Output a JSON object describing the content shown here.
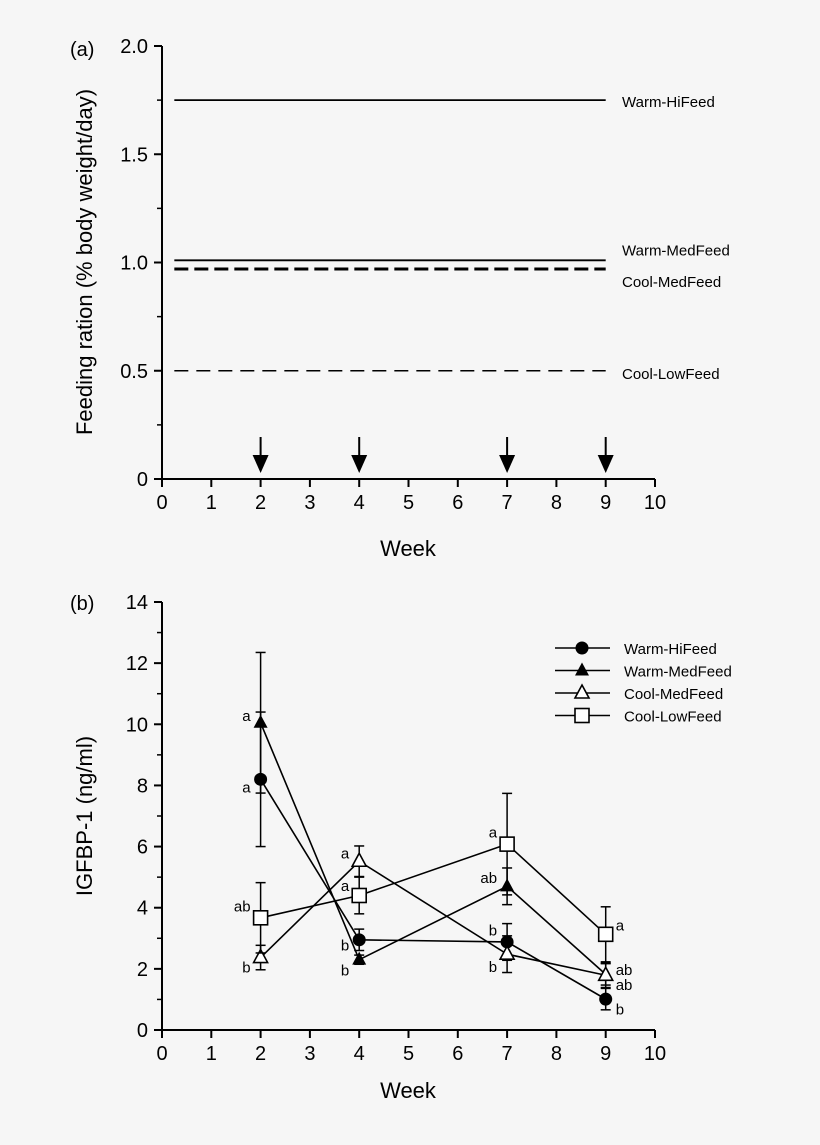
{
  "chart_data": [
    {
      "panel_label": "(a)",
      "type": "line",
      "xlabel": "Week",
      "ylabel": "Feeding ration (% body weight/day)",
      "xlim": [
        0,
        10
      ],
      "ylim": [
        0,
        2.0
      ],
      "xticks": [
        "0",
        "1",
        "2",
        "3",
        "4",
        "5",
        "6",
        "7",
        "8",
        "9",
        "10"
      ],
      "yticks": [
        "0",
        "0.5",
        "1.0",
        "1.5",
        "2.0"
      ],
      "grid": false,
      "series": [
        {
          "name": "Warm-HiFeed",
          "value": 1.75,
          "style": "solid",
          "x": [
            0.25,
            9
          ]
        },
        {
          "name": "Warm-MedFeed",
          "value": 1.01,
          "style": "solid",
          "x": [
            0.25,
            9
          ]
        },
        {
          "name": "Cool-MedFeed",
          "value": 0.97,
          "style": "dashed-bold",
          "x": [
            0.25,
            9
          ]
        },
        {
          "name": "Cool-LowFeed",
          "value": 0.5,
          "style": "dashed",
          "x": [
            0.25,
            9
          ]
        }
      ],
      "sampling_arrows_weeks": [
        2,
        4,
        7,
        9
      ]
    },
    {
      "panel_label": "(b)",
      "type": "line",
      "xlabel": "Week",
      "ylabel": "IGFBP-1 (ng/ml)",
      "xlim": [
        0,
        10
      ],
      "ylim": [
        0,
        14
      ],
      "xticks": [
        "0",
        "1",
        "2",
        "3",
        "4",
        "5",
        "6",
        "7",
        "8",
        "9",
        "10"
      ],
      "yticks": [
        "0",
        "2",
        "4",
        "6",
        "8",
        "10",
        "12",
        "14"
      ],
      "grid": false,
      "legend": "top-right",
      "x": [
        2,
        4,
        7,
        9
      ],
      "series": [
        {
          "name": "Warm-HiFeed",
          "marker": "filled-circle",
          "values": [
            8.2,
            2.95,
            2.88,
            1.01
          ],
          "errors": [
            2.2,
            0.35,
            0.6,
            0.35
          ],
          "letters": [
            "a",
            "b",
            "b",
            "b"
          ]
        },
        {
          "name": "Warm-MedFeed",
          "marker": "filled-triangle",
          "values": [
            10.05,
            2.3,
            4.7,
            1.82
          ],
          "errors": [
            2.3,
            0.15,
            0.6,
            0.35
          ],
          "letters": [
            "a",
            "b",
            "ab",
            "ab"
          ]
        },
        {
          "name": "Cool-MedFeed",
          "marker": "open-triangle",
          "values": [
            2.37,
            5.52,
            2.48,
            1.79
          ],
          "errors": [
            0.4,
            0.5,
            0.6,
            0.4
          ],
          "letters": [
            "b",
            "a",
            "b",
            "ab"
          ]
        },
        {
          "name": "Cool-LowFeed",
          "marker": "open-square",
          "values": [
            3.67,
            4.4,
            6.08,
            3.13
          ],
          "errors": [
            1.15,
            0.6,
            1.66,
            0.9
          ],
          "letters": [
            "ab",
            "a",
            "a",
            "a"
          ]
        }
      ]
    }
  ]
}
